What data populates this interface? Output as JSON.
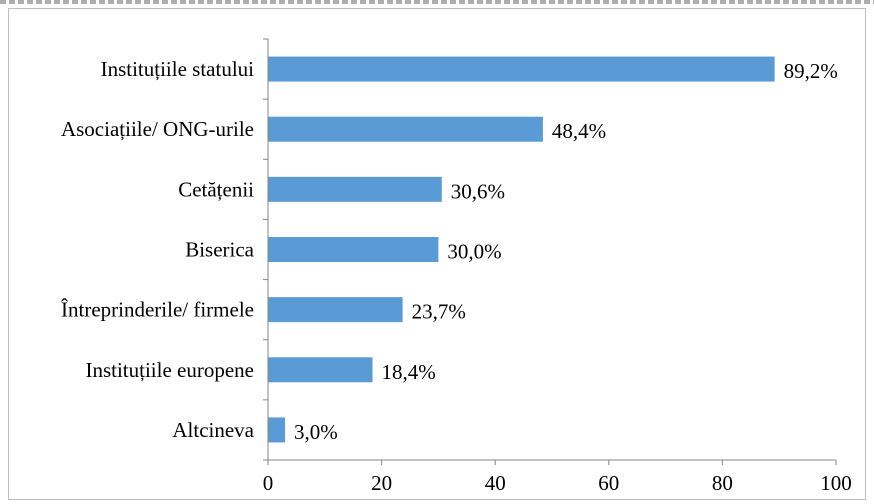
{
  "chart_data": {
    "type": "bar",
    "orientation": "horizontal",
    "categories": [
      "Instituțiile statului",
      "Asociațiile/ ONG-urile",
      "Cetățenii",
      "Biserica",
      "Întreprinderile/ firmele",
      "Instituțiile europene",
      "Altcineva"
    ],
    "values": [
      89.2,
      48.4,
      30.6,
      30.0,
      23.7,
      18.4,
      3.0
    ],
    "value_labels": [
      "89,2%",
      "48,4%",
      "30,6%",
      "30,0%",
      "23,7%",
      "18,4%",
      "3,0%"
    ],
    "xlim": [
      0,
      100
    ],
    "xticks": [
      0,
      20,
      40,
      60,
      80,
      100
    ],
    "xtick_labels": [
      "0",
      "20",
      "40",
      "60",
      "80",
      "100"
    ],
    "grid": false,
    "legend": "none",
    "title": "",
    "xlabel": "",
    "ylabel": "",
    "bar_color": "#5b9bd5"
  }
}
